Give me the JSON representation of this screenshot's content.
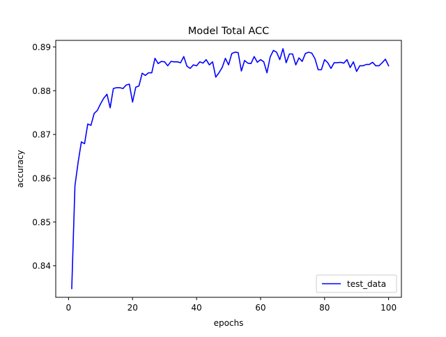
{
  "chart_data": {
    "type": "line",
    "title": "Model Total ACC",
    "xlabel": "epochs",
    "ylabel": "accuracy",
    "xlim": [
      -4,
      104
    ],
    "ylim": [
      0.8328,
      0.8915
    ],
    "xticks": [
      0,
      20,
      40,
      60,
      80,
      100
    ],
    "yticks": [
      0.84,
      0.85,
      0.86,
      0.87,
      0.88,
      0.89
    ],
    "ytick_labels": [
      "0.84",
      "0.85",
      "0.86",
      "0.87",
      "0.88",
      "0.89"
    ],
    "grid": false,
    "legend": {
      "position": "lower-right"
    },
    "series": [
      {
        "name": "test_data",
        "color": "#0000ff",
        "x": [
          1,
          2,
          3,
          4,
          5,
          6,
          7,
          8,
          9,
          10,
          11,
          12,
          13,
          14,
          15,
          16,
          17,
          18,
          19,
          20,
          21,
          22,
          23,
          24,
          25,
          26,
          27,
          28,
          29,
          30,
          31,
          32,
          33,
          34,
          35,
          36,
          37,
          38,
          39,
          40,
          41,
          42,
          43,
          44,
          45,
          46,
          47,
          48,
          49,
          50,
          51,
          52,
          53,
          54,
          55,
          56,
          57,
          58,
          59,
          60,
          61,
          62,
          63,
          64,
          65,
          66,
          67,
          68,
          69,
          70,
          71,
          72,
          73,
          74,
          75,
          76,
          77,
          78,
          79,
          80,
          81,
          82,
          83,
          84,
          85,
          86,
          87,
          88,
          89,
          90,
          91,
          92,
          93,
          94,
          95,
          96,
          97,
          98,
          99,
          100
        ],
        "values": [
          0.8348,
          0.8583,
          0.8637,
          0.8683,
          0.8679,
          0.8724,
          0.8721,
          0.8748,
          0.8755,
          0.877,
          0.8783,
          0.8792,
          0.8761,
          0.8805,
          0.8807,
          0.8807,
          0.8805,
          0.8813,
          0.8815,
          0.8774,
          0.8808,
          0.8811,
          0.884,
          0.8835,
          0.8841,
          0.8841,
          0.8874,
          0.8862,
          0.8867,
          0.8866,
          0.8857,
          0.8867,
          0.8866,
          0.8866,
          0.8864,
          0.8878,
          0.8856,
          0.8851,
          0.8859,
          0.8857,
          0.8866,
          0.8863,
          0.8871,
          0.8859,
          0.8866,
          0.8831,
          0.8841,
          0.8853,
          0.8874,
          0.8859,
          0.8885,
          0.8888,
          0.8887,
          0.8845,
          0.8869,
          0.8863,
          0.8862,
          0.8878,
          0.8865,
          0.8871,
          0.8866,
          0.8841,
          0.8877,
          0.8892,
          0.8888,
          0.8871,
          0.8896,
          0.8864,
          0.8884,
          0.8884,
          0.8859,
          0.8875,
          0.8867,
          0.8885,
          0.8888,
          0.8886,
          0.8873,
          0.8848,
          0.8848,
          0.8871,
          0.8864,
          0.8851,
          0.8864,
          0.8864,
          0.8865,
          0.8863,
          0.8871,
          0.8853,
          0.8866,
          0.8844,
          0.8857,
          0.8857,
          0.886,
          0.886,
          0.8865,
          0.8857,
          0.8857,
          0.8864,
          0.8872,
          0.8857
        ]
      }
    ]
  }
}
